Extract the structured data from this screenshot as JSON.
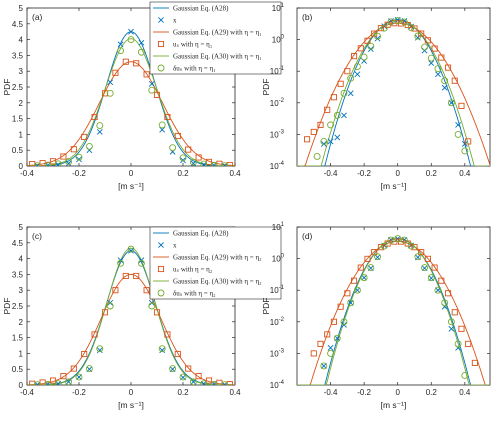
{
  "colors": {
    "gaussian_a28": "#0072BD",
    "x": "#0072BD",
    "a29": "#D95319",
    "a30": "#77AC30"
  },
  "chart_data": [
    {
      "id": "a",
      "panel_label": "(a)",
      "type": "line",
      "scale": "linear",
      "xlabel": "[m s⁻¹]",
      "ylabel": "PDF",
      "xlim": [
        -0.4,
        0.4
      ],
      "ylim": [
        0,
        5
      ],
      "xticks": [
        "-0.4",
        "-0.2",
        "0",
        "0.2",
        "0.4"
      ],
      "yticks": [
        "0",
        "0.5",
        "1",
        "1.5",
        "2",
        "2.5",
        "3",
        "3.5",
        "4",
        "4.5",
        "5"
      ],
      "legend": {
        "placement": "top-center",
        "entries": [
          {
            "label": "Gaussian Eq. (A28)",
            "marker": "line",
            "color": "#0072BD"
          },
          {
            "label": "x",
            "marker": "x",
            "color": "#0072BD"
          },
          {
            "label": "Gaussian Eq. (A29) with η = η₁",
            "marker": "line",
            "color": "#D95319"
          },
          {
            "label": "uₛ with η = η₁",
            "marker": "square",
            "color": "#D95319"
          },
          {
            "label": "Gaussian Eq. (A30) with η = η₁",
            "marker": "line",
            "color": "#77AC30"
          },
          {
            "label": "δuₛ with η = η₁",
            "marker": "circle",
            "color": "#77AC30"
          }
        ]
      },
      "curves": [
        {
          "color": "#0072BD",
          "sigma": 0.094,
          "peak": 4.25
        },
        {
          "color": "#D95319",
          "sigma": 0.121,
          "peak": 3.3
        },
        {
          "color": "#77AC30",
          "sigma": 0.099,
          "peak": 4.03
        }
      ],
      "series": [
        {
          "marker": "x",
          "color": "#0072BD",
          "x": [
            -0.36,
            -0.32,
            -0.28,
            -0.24,
            -0.2,
            -0.16,
            -0.12,
            -0.08,
            -0.04,
            0,
            0.04,
            0.08,
            0.12,
            0.16,
            0.2,
            0.24,
            0.28,
            0.32,
            0.36
          ],
          "y": [
            0.01,
            0.02,
            0.04,
            0.08,
            0.21,
            0.5,
            1.08,
            2.65,
            3.85,
            4.25,
            3.9,
            2.6,
            1.15,
            0.45,
            0.18,
            0.08,
            0.04,
            0.02,
            0.01
          ]
        },
        {
          "marker": "square",
          "color": "#D95319",
          "x": [
            -0.38,
            -0.34,
            -0.3,
            -0.26,
            -0.22,
            -0.18,
            -0.14,
            -0.1,
            -0.06,
            -0.02,
            0.02,
            0.06,
            0.1,
            0.14,
            0.18,
            0.22,
            0.26,
            0.3,
            0.34,
            0.38
          ],
          "y": [
            0.06,
            0.09,
            0.15,
            0.3,
            0.53,
            0.92,
            1.55,
            2.3,
            2.95,
            3.3,
            3.25,
            2.9,
            2.25,
            1.55,
            0.95,
            0.52,
            0.27,
            0.13,
            0.07,
            0.03
          ]
        },
        {
          "marker": "circle",
          "color": "#77AC30",
          "x": [
            -0.36,
            -0.32,
            -0.28,
            -0.24,
            -0.2,
            -0.16,
            -0.12,
            -0.08,
            -0.04,
            0,
            0.04,
            0.08,
            0.12,
            0.16,
            0.2,
            0.24,
            0.28,
            0.32,
            0.36
          ],
          "y": [
            0.01,
            0.03,
            0.07,
            0.14,
            0.28,
            0.62,
            1.28,
            2.3,
            3.65,
            4.0,
            3.6,
            2.4,
            1.3,
            0.58,
            0.26,
            0.12,
            0.06,
            0.02,
            0.01
          ]
        }
      ]
    },
    {
      "id": "b",
      "panel_label": "(b)",
      "type": "line",
      "scale": "log",
      "xlabel": "[m s⁻¹]",
      "ylabel": "PDF",
      "xlim": [
        -0.6,
        0.55
      ],
      "ylim": [
        0.0001,
        10
      ],
      "xticks": [
        "-0.4",
        "-0.2",
        "0",
        "0.2",
        "0.4"
      ],
      "ytick_exponents": [
        "-4",
        "-3",
        "-2",
        "-1",
        "0",
        "1"
      ],
      "curves": [
        {
          "color": "#0072BD",
          "sigma": 0.094,
          "peak": 4.25
        },
        {
          "color": "#D95319",
          "sigma": 0.121,
          "peak": 3.3
        },
        {
          "color": "#77AC30",
          "sigma": 0.099,
          "peak": 4.03
        }
      ],
      "series": [
        {
          "marker": "x",
          "color": "#0072BD",
          "x": [
            -0.44,
            -0.4,
            -0.36,
            -0.32,
            -0.28,
            -0.24,
            -0.2,
            -0.16,
            -0.12,
            -0.08,
            -0.04,
            0,
            0.04,
            0.08,
            0.12,
            0.16,
            0.2,
            0.24,
            0.28,
            0.32,
            0.36,
            0.4
          ],
          "y": [
            0.0005,
            0.0006,
            0.0008,
            0.004,
            0.02,
            0.08,
            0.21,
            0.5,
            1.08,
            2.65,
            3.85,
            4.25,
            3.9,
            2.6,
            1.15,
            0.45,
            0.18,
            0.08,
            0.03,
            0.01,
            0.002,
            0.0005
          ]
        },
        {
          "marker": "square",
          "color": "#D95319",
          "x": [
            -0.54,
            -0.5,
            -0.46,
            -0.42,
            -0.38,
            -0.34,
            -0.3,
            -0.26,
            -0.22,
            -0.18,
            -0.14,
            -0.1,
            -0.06,
            -0.02,
            0.02,
            0.06,
            0.1,
            0.14,
            0.18,
            0.22,
            0.26,
            0.3,
            0.34,
            0.38,
            0.42
          ],
          "y": [
            0.0007,
            0.0012,
            0.002,
            0.006,
            0.015,
            0.04,
            0.1,
            0.3,
            0.53,
            0.92,
            1.55,
            2.3,
            2.95,
            3.3,
            3.25,
            2.9,
            2.25,
            1.55,
            0.95,
            0.52,
            0.27,
            0.13,
            0.05,
            0.008,
            0.0006
          ]
        },
        {
          "marker": "circle",
          "color": "#77AC30",
          "x": [
            -0.48,
            -0.44,
            -0.4,
            -0.36,
            -0.32,
            -0.28,
            -0.24,
            -0.2,
            -0.16,
            -0.12,
            -0.08,
            -0.04,
            0,
            0.04,
            0.08,
            0.12,
            0.16,
            0.2,
            0.24,
            0.28,
            0.32,
            0.36,
            0.4
          ],
          "y": [
            0.0002,
            0.0006,
            0.002,
            0.004,
            0.02,
            0.06,
            0.14,
            0.28,
            0.62,
            1.28,
            2.3,
            3.65,
            4.0,
            3.6,
            2.4,
            1.3,
            0.58,
            0.26,
            0.12,
            0.05,
            0.01,
            0.001,
            0.0003
          ]
        }
      ]
    },
    {
      "id": "c",
      "panel_label": "(c)",
      "type": "line",
      "scale": "linear",
      "xlabel": "[m s⁻¹]",
      "ylabel": "PDF",
      "xlim": [
        -0.4,
        0.4
      ],
      "ylim": [
        0,
        5
      ],
      "xticks": [
        "-0.4",
        "-0.2",
        "0",
        "0.2",
        "0.4"
      ],
      "yticks": [
        "0",
        "0.5",
        "1",
        "1.5",
        "2",
        "2.5",
        "3",
        "3.5",
        "4",
        "4.5",
        "5"
      ],
      "legend": {
        "placement": "top-center",
        "entries": [
          {
            "label": "Gaussian Eq. (A28)",
            "marker": "line",
            "color": "#0072BD"
          },
          {
            "label": "x",
            "marker": "x",
            "color": "#0072BD"
          },
          {
            "label": "Gaussian Eq. (A29) with η = η₂",
            "marker": "line",
            "color": "#D95319"
          },
          {
            "label": "uₛ with η = η₂",
            "marker": "square",
            "color": "#D95319"
          },
          {
            "label": "Gaussian Eq. (A30) with η = η₂",
            "marker": "line",
            "color": "#77AC30"
          },
          {
            "label": "δuₛ with η = η₂",
            "marker": "circle",
            "color": "#77AC30"
          }
        ]
      },
      "curves": [
        {
          "color": "#0072BD",
          "sigma": 0.094,
          "peak": 4.25
        },
        {
          "color": "#D95319",
          "sigma": 0.114,
          "peak": 3.5
        },
        {
          "color": "#77AC30",
          "sigma": 0.092,
          "peak": 4.33
        }
      ],
      "series": [
        {
          "marker": "x",
          "color": "#0072BD",
          "x": [
            -0.36,
            -0.32,
            -0.28,
            -0.24,
            -0.2,
            -0.16,
            -0.12,
            -0.08,
            -0.04,
            0,
            0.04,
            0.08,
            0.12,
            0.16,
            0.2,
            0.24,
            0.28,
            0.32,
            0.36
          ],
          "y": [
            0.01,
            0.02,
            0.04,
            0.1,
            0.25,
            0.5,
            1.1,
            2.6,
            3.95,
            4.25,
            3.95,
            2.6,
            1.1,
            0.5,
            0.24,
            0.1,
            0.04,
            0.02,
            0.01
          ]
        },
        {
          "marker": "square",
          "color": "#D95319",
          "x": [
            -0.38,
            -0.34,
            -0.3,
            -0.26,
            -0.22,
            -0.18,
            -0.14,
            -0.1,
            -0.06,
            -0.02,
            0.02,
            0.06,
            0.1,
            0.14,
            0.18,
            0.22,
            0.26,
            0.3,
            0.34,
            0.38
          ],
          "y": [
            0.04,
            0.08,
            0.14,
            0.28,
            0.52,
            0.98,
            1.6,
            2.3,
            3.0,
            3.45,
            3.45,
            3.0,
            2.3,
            1.6,
            0.98,
            0.52,
            0.28,
            0.14,
            0.07,
            0.03
          ]
        },
        {
          "marker": "circle",
          "color": "#77AC30",
          "x": [
            -0.36,
            -0.32,
            -0.28,
            -0.24,
            -0.2,
            -0.16,
            -0.12,
            -0.08,
            -0.04,
            0,
            0.04,
            0.08,
            0.12,
            0.16,
            0.2,
            0.24,
            0.28,
            0.32,
            0.36
          ],
          "y": [
            0.01,
            0.02,
            0.04,
            0.1,
            0.25,
            0.52,
            1.15,
            2.5,
            3.85,
            4.3,
            3.85,
            2.5,
            1.15,
            0.52,
            0.25,
            0.1,
            0.04,
            0.02,
            0.01
          ]
        }
      ]
    },
    {
      "id": "d",
      "panel_label": "(d)",
      "type": "line",
      "scale": "log",
      "xlabel": "[m s⁻¹]",
      "ylabel": "PDF",
      "xlim": [
        -0.6,
        0.55
      ],
      "ylim": [
        0.0001,
        10
      ],
      "xticks": [
        "-0.4",
        "-0.2",
        "0",
        "0.2",
        "0.4"
      ],
      "ytick_exponents": [
        "-4",
        "-3",
        "-2",
        "-1",
        "0",
        "1"
      ],
      "curves": [
        {
          "color": "#0072BD",
          "sigma": 0.094,
          "peak": 4.25
        },
        {
          "color": "#D95319",
          "sigma": 0.114,
          "peak": 3.5
        },
        {
          "color": "#77AC30",
          "sigma": 0.092,
          "peak": 4.33
        }
      ],
      "series": [
        {
          "marker": "x",
          "color": "#0072BD",
          "x": [
            -0.44,
            -0.4,
            -0.36,
            -0.32,
            -0.28,
            -0.24,
            -0.2,
            -0.16,
            -0.12,
            -0.08,
            -0.04,
            0,
            0.04,
            0.08,
            0.12,
            0.16,
            0.2,
            0.24,
            0.28,
            0.32,
            0.36
          ],
          "y": [
            0.0004,
            0.0015,
            0.003,
            0.008,
            0.04,
            0.1,
            0.25,
            0.5,
            1.1,
            2.6,
            3.95,
            4.25,
            3.95,
            2.6,
            1.1,
            0.5,
            0.24,
            0.1,
            0.03,
            0.006,
            0.0015
          ]
        },
        {
          "marker": "square",
          "color": "#D95319",
          "x": [
            -0.5,
            -0.46,
            -0.42,
            -0.38,
            -0.34,
            -0.3,
            -0.26,
            -0.22,
            -0.18,
            -0.14,
            -0.1,
            -0.06,
            -0.02,
            0.02,
            0.06,
            0.1,
            0.14,
            0.18,
            0.22,
            0.26,
            0.3,
            0.34,
            0.38,
            0.42,
            0.46
          ],
          "y": [
            0.001,
            0.002,
            0.004,
            0.01,
            0.03,
            0.08,
            0.2,
            0.52,
            0.98,
            1.6,
            2.3,
            3.0,
            3.45,
            3.45,
            3.0,
            2.3,
            1.6,
            0.98,
            0.52,
            0.2,
            0.08,
            0.02,
            0.006,
            0.002,
            0.0005
          ]
        },
        {
          "marker": "circle",
          "color": "#77AC30",
          "x": [
            -0.44,
            -0.4,
            -0.36,
            -0.32,
            -0.28,
            -0.24,
            -0.2,
            -0.16,
            -0.12,
            -0.08,
            -0.04,
            0,
            0.04,
            0.08,
            0.12,
            0.16,
            0.2,
            0.24,
            0.28,
            0.32,
            0.36,
            0.4
          ],
          "y": [
            0.0004,
            0.001,
            0.003,
            0.01,
            0.04,
            0.1,
            0.25,
            0.52,
            1.15,
            2.5,
            3.85,
            4.3,
            3.85,
            2.5,
            1.15,
            0.52,
            0.25,
            0.1,
            0.04,
            0.01,
            0.002,
            0.0002
          ]
        }
      ]
    }
  ]
}
